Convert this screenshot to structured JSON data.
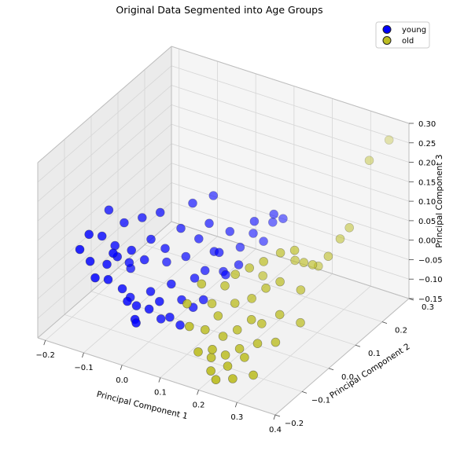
{
  "chart_data": {
    "type": "scatter",
    "projection": "3d",
    "title": "Original Data Segmented into Age Groups",
    "xlabel": "Principal Component 1",
    "ylabel": "Principal Component 2",
    "zlabel": "Principal Component 3",
    "xlim": [
      -0.22,
      0.4
    ],
    "ylim": [
      -0.2,
      0.3
    ],
    "zlim": [
      -0.15,
      0.3
    ],
    "xticks": [
      "−0.2",
      "−0.1",
      "0.0",
      "0.1",
      "0.2",
      "0.3",
      "0.4"
    ],
    "yticks": [
      "−0.2",
      "−0.1",
      "0.0",
      "0.1",
      "0.2",
      "0.3"
    ],
    "zticks": [
      "−0.15",
      "−0.10",
      "−0.05",
      "0.00",
      "0.05",
      "0.10",
      "0.15",
      "0.20",
      "0.25",
      "0.30"
    ],
    "grid": true,
    "legend": "top-right",
    "series": [
      {
        "name": "young",
        "color": "#0000ff",
        "points": [
          [
            -0.18,
            -0.1,
            0.03
          ],
          [
            -0.17,
            -0.08,
            0.06
          ],
          [
            -0.16,
            -0.09,
            0.0
          ],
          [
            -0.15,
            -0.06,
            0.05
          ],
          [
            -0.14,
            -0.1,
            -0.03
          ],
          [
            -0.13,
            -0.04,
            0.02
          ],
          [
            -0.12,
            -0.08,
            -0.04
          ],
          [
            -0.12,
            -0.02,
            0.07
          ],
          [
            -0.11,
            -0.06,
            0.01
          ],
          [
            -0.1,
            -0.09,
            0.04
          ],
          [
            -0.1,
            -0.03,
            -0.02
          ],
          [
            -0.09,
            -0.07,
            -0.06
          ],
          [
            -0.08,
            -0.05,
            0.03
          ],
          [
            -0.08,
            -0.01,
            0.09
          ],
          [
            -0.07,
            -0.08,
            -0.08
          ],
          [
            -0.06,
            -0.03,
            0.0
          ],
          [
            -0.06,
            -0.06,
            -0.1
          ],
          [
            -0.05,
            -0.02,
            0.05
          ],
          [
            -0.04,
            -0.09,
            -0.12
          ],
          [
            -0.04,
            0.0,
            0.11
          ],
          [
            -0.03,
            -0.05,
            -0.06
          ],
          [
            -0.02,
            -0.07,
            -0.09
          ],
          [
            -0.02,
            -0.01,
            0.03
          ],
          [
            -0.01,
            -0.04,
            -0.13
          ],
          [
            0.0,
            -0.06,
            -0.07
          ],
          [
            0.0,
            0.02,
            0.07
          ],
          [
            0.01,
            -0.03,
            -0.04
          ],
          [
            0.02,
            -0.05,
            -0.11
          ],
          [
            0.02,
            0.01,
            0.01
          ],
          [
            0.03,
            -0.02,
            -0.08
          ],
          [
            0.04,
            0.03,
            0.05
          ],
          [
            0.04,
            -0.04,
            -0.13
          ],
          [
            0.05,
            0.0,
            -0.03
          ],
          [
            0.06,
            -0.02,
            -0.09
          ],
          [
            0.06,
            0.04,
            0.09
          ],
          [
            0.07,
            0.01,
            -0.01
          ],
          [
            0.08,
            0.03,
            0.03
          ],
          [
            0.08,
            -0.01,
            -0.07
          ],
          [
            0.09,
            0.05,
            -0.03
          ],
          [
            0.1,
            0.02,
            0.04
          ],
          [
            0.1,
            0.06,
            0.07
          ],
          [
            0.11,
            0.03,
            -0.02
          ],
          [
            0.12,
            0.07,
            0.03
          ],
          [
            0.13,
            0.05,
            0.0
          ],
          [
            0.14,
            0.09,
            0.06
          ],
          [
            0.15,
            0.08,
            0.1
          ],
          [
            0.16,
            0.1,
            0.04
          ],
          [
            0.17,
            0.12,
            0.08
          ],
          [
            0.18,
            0.11,
            0.11
          ],
          [
            0.19,
            0.13,
            0.09
          ],
          [
            -0.09,
            -0.04,
            -0.1
          ],
          [
            -0.05,
            -0.08,
            -0.12
          ],
          [
            -0.11,
            -0.01,
            -0.05
          ],
          [
            -0.03,
            0.01,
            -0.02
          ],
          [
            0.01,
            0.05,
            0.12
          ],
          [
            0.05,
            0.07,
            0.14
          ],
          [
            -0.16,
            -0.02,
            0.09
          ],
          [
            -0.13,
            -0.07,
            -0.01
          ]
        ]
      },
      {
        "name": "old",
        "color": "#bcbd22",
        "points": [
          [
            0.1,
            -0.1,
            -0.02
          ],
          [
            0.11,
            -0.06,
            0.01
          ],
          [
            0.12,
            -0.12,
            -0.06
          ],
          [
            0.13,
            -0.05,
            -0.04
          ],
          [
            0.14,
            -0.09,
            -0.08
          ],
          [
            0.15,
            -0.03,
            0.0
          ],
          [
            0.15,
            -0.13,
            -0.11
          ],
          [
            0.16,
            -0.07,
            -0.05
          ],
          [
            0.17,
            -0.11,
            -0.13
          ],
          [
            0.17,
            -0.02,
            0.03
          ],
          [
            0.18,
            -0.08,
            -0.09
          ],
          [
            0.19,
            -0.14,
            -0.14
          ],
          [
            0.19,
            -0.05,
            -0.02
          ],
          [
            0.2,
            -0.1,
            -0.12
          ],
          [
            0.2,
            -0.01,
            0.05
          ],
          [
            0.21,
            -0.07,
            -0.07
          ],
          [
            0.21,
            -0.15,
            -0.15
          ],
          [
            0.22,
            -0.03,
            -0.01
          ],
          [
            0.22,
            -0.12,
            -0.13
          ],
          [
            0.23,
            -0.09,
            -0.1
          ],
          [
            0.23,
            0.0,
            0.07
          ],
          [
            0.24,
            -0.06,
            -0.04
          ],
          [
            0.24,
            -0.13,
            -0.15
          ],
          [
            0.25,
            -0.02,
            0.02
          ],
          [
            0.25,
            -0.1,
            -0.11
          ],
          [
            0.26,
            -0.05,
            -0.05
          ],
          [
            0.26,
            0.02,
            0.09
          ],
          [
            0.27,
            -0.08,
            -0.08
          ],
          [
            0.28,
            -0.01,
            0.04
          ],
          [
            0.28,
            -0.11,
            -0.14
          ],
          [
            0.29,
            0.03,
            0.1
          ],
          [
            0.3,
            -0.04,
            -0.02
          ],
          [
            0.3,
            0.05,
            0.06
          ],
          [
            0.31,
            -0.07,
            -0.07
          ],
          [
            0.32,
            0.01,
            0.02
          ],
          [
            0.33,
            0.04,
            0.07
          ],
          [
            0.34,
            -0.02,
            -0.04
          ],
          [
            0.35,
            0.07,
            0.08
          ],
          [
            0.36,
            0.1,
            0.11
          ],
          [
            0.37,
            0.12,
            0.13
          ],
          [
            0.38,
            0.18,
            0.27
          ],
          [
            0.39,
            0.24,
            0.29
          ],
          [
            0.2,
            0.04,
            0.0
          ],
          [
            0.27,
            0.06,
            0.05
          ],
          [
            0.18,
            -0.12,
            -0.1
          ],
          [
            0.31,
            0.09,
            0.03
          ]
        ]
      }
    ]
  }
}
